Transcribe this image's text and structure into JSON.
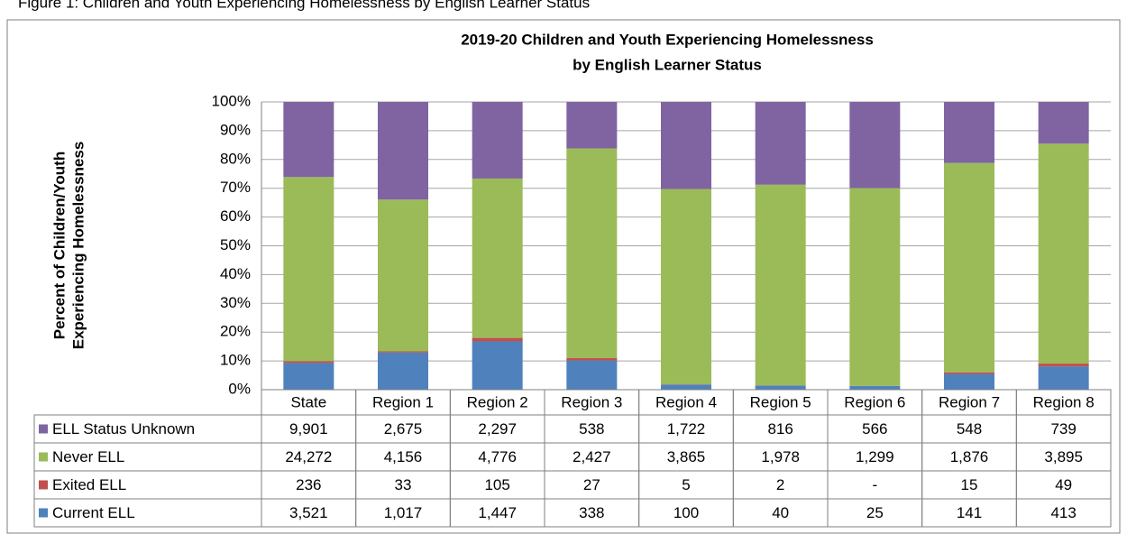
{
  "chart_data": {
    "type": "stacked_bar_100",
    "caption": "Figure 1: Children and Youth Experiencing Homelessness by English Learner Status",
    "title": [
      "2019-20 Children and Youth Experiencing Homelessness",
      "by English Learner Status"
    ],
    "ylabel": [
      "Percent of Children/Youth",
      "Experiencing Homelessness"
    ],
    "categories": [
      "State",
      "Region 1",
      "Region 2",
      "Region 3",
      "Region 4",
      "Region 5",
      "Region 6",
      "Region 7",
      "Region 8"
    ],
    "series": [
      {
        "name": "ELL Status Unknown",
        "color": "#8064a2",
        "values": [
          9901,
          2675,
          2297,
          538,
          1722,
          816,
          566,
          548,
          739
        ],
        "value_labels": [
          "9,901",
          "2,675",
          "2,297",
          "538",
          "1,722",
          "816",
          "566",
          "548",
          "739"
        ]
      },
      {
        "name": "Never ELL",
        "color": "#9bbb59",
        "values": [
          24272,
          4156,
          4776,
          2427,
          3865,
          1978,
          1299,
          1876,
          3895
        ],
        "value_labels": [
          "24,272",
          "4,156",
          "4,776",
          "2,427",
          "3,865",
          "1,978",
          "1,299",
          "1,876",
          "3,895"
        ]
      },
      {
        "name": "Exited ELL",
        "color": "#c0504d",
        "values": [
          236,
          33,
          105,
          27,
          5,
          2,
          null,
          15,
          49
        ],
        "value_labels": [
          "236",
          "33",
          "105",
          "27",
          "5",
          "2",
          "-",
          "15",
          "49"
        ]
      },
      {
        "name": "Current ELL",
        "color": "#4f81bd",
        "values": [
          3521,
          1017,
          1447,
          338,
          100,
          40,
          25,
          141,
          413
        ],
        "value_labels": [
          "3,521",
          "1,017",
          "1,447",
          "338",
          "100",
          "40",
          "25",
          "141",
          "413"
        ]
      }
    ],
    "ylim": [
      0,
      100
    ],
    "yticks": [
      {
        "value": 0,
        "label": "0%"
      },
      {
        "value": 10,
        "label": "10%"
      },
      {
        "value": 20,
        "label": "20%"
      },
      {
        "value": 30,
        "label": "30%"
      },
      {
        "value": 40,
        "label": "40%"
      },
      {
        "value": 50,
        "label": "50%"
      },
      {
        "value": 60,
        "label": "60%"
      },
      {
        "value": 70,
        "label": "70%"
      },
      {
        "value": 80,
        "label": "80%"
      },
      {
        "value": 90,
        "label": "90%"
      },
      {
        "value": 100,
        "label": "100%"
      }
    ],
    "grid": true
  }
}
